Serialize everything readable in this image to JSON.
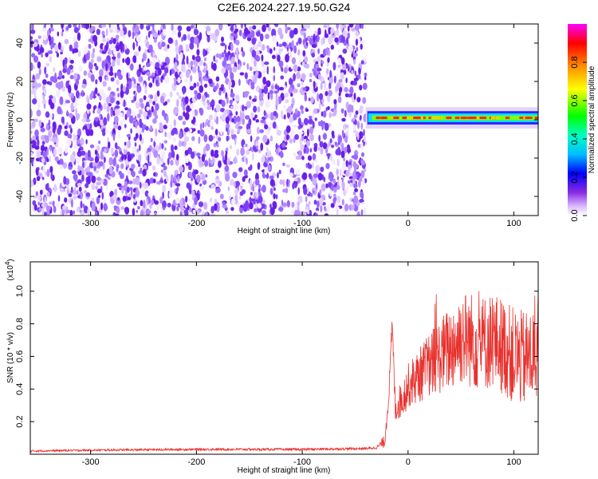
{
  "title": "C2E6.2024.227.19.50.G24",
  "charts": {
    "spectrogram": {
      "type": "heatmap",
      "xlabel": "Height of straight line (km)",
      "ylabel": "Frequency (Hz)",
      "xlim": [
        -357,
        123
      ],
      "ylim": [
        -50,
        50
      ],
      "xticks": [
        -300,
        -200,
        -100,
        0,
        100
      ],
      "yticks": [
        -40,
        -20,
        0,
        20,
        40
      ],
      "colorbar": {
        "label": "Normalized spectral amplitude",
        "range": [
          0,
          1
        ],
        "ticks": [
          0.0,
          0.2,
          0.4,
          0.6,
          0.8
        ],
        "colormap": [
          "#ffffff",
          "#d8b8ff",
          "#8a2be2",
          "#0000ff",
          "#00bfff",
          "#00ff80",
          "#7fff00",
          "#ffff00",
          "#ff8c00",
          "#ff0000",
          "#ff00ff"
        ]
      },
      "noise_region": {
        "x_from": -357,
        "x_to": -40,
        "freq_from": -50,
        "freq_to": 50
      },
      "signal_band": {
        "x_from": -40,
        "x_to": 123,
        "center_freq": 1,
        "half_width": 3.5
      }
    },
    "snr": {
      "type": "line",
      "xlabel": "Height of straight line (km)",
      "ylabel": "SNR (10 * v/v)",
      "y_multiplier": "(x10",
      "y_multiplier_exp": "4",
      "y_multiplier_close": ")",
      "xlim": [
        -357,
        123
      ],
      "ylim": [
        0,
        1.18
      ],
      "xticks": [
        -300,
        -200,
        -100,
        0,
        100
      ],
      "yticks": [
        0.2,
        0.4,
        0.6,
        0.8,
        1.0
      ],
      "color": "#e8322e",
      "series": [
        {
          "x": -357,
          "y": 0.02
        },
        {
          "x": -300,
          "y": 0.025
        },
        {
          "x": -200,
          "y": 0.03
        },
        {
          "x": -100,
          "y": 0.03
        },
        {
          "x": -40,
          "y": 0.035
        },
        {
          "x": -30,
          "y": 0.04
        },
        {
          "x": -22,
          "y": 0.08
        },
        {
          "x": -18,
          "y": 0.38
        },
        {
          "x": -15,
          "y": 0.8
        },
        {
          "x": -12,
          "y": 0.28
        },
        {
          "x": -5,
          "y": 0.35
        },
        {
          "x": 0,
          "y": 0.42
        },
        {
          "x": 10,
          "y": 0.48
        },
        {
          "x": 20,
          "y": 0.55
        },
        {
          "x": 30,
          "y": 0.6
        },
        {
          "x": 40,
          "y": 0.65
        },
        {
          "x": 50,
          "y": 0.72
        },
        {
          "x": 60,
          "y": 0.7
        },
        {
          "x": 70,
          "y": 0.68
        },
        {
          "x": 80,
          "y": 0.7
        },
        {
          "x": 90,
          "y": 0.66
        },
        {
          "x": 100,
          "y": 0.6
        },
        {
          "x": 110,
          "y": 0.58
        },
        {
          "x": 123,
          "y": 0.62
        }
      ],
      "noise_amplitude": [
        {
          "x": -357,
          "a": 0.006
        },
        {
          "x": -30,
          "a": 0.008
        },
        {
          "x": -20,
          "a": 0.05
        },
        {
          "x": -5,
          "a": 0.12
        },
        {
          "x": 20,
          "a": 0.2
        },
        {
          "x": 50,
          "a": 0.3
        },
        {
          "x": 123,
          "a": 0.3
        }
      ]
    }
  }
}
